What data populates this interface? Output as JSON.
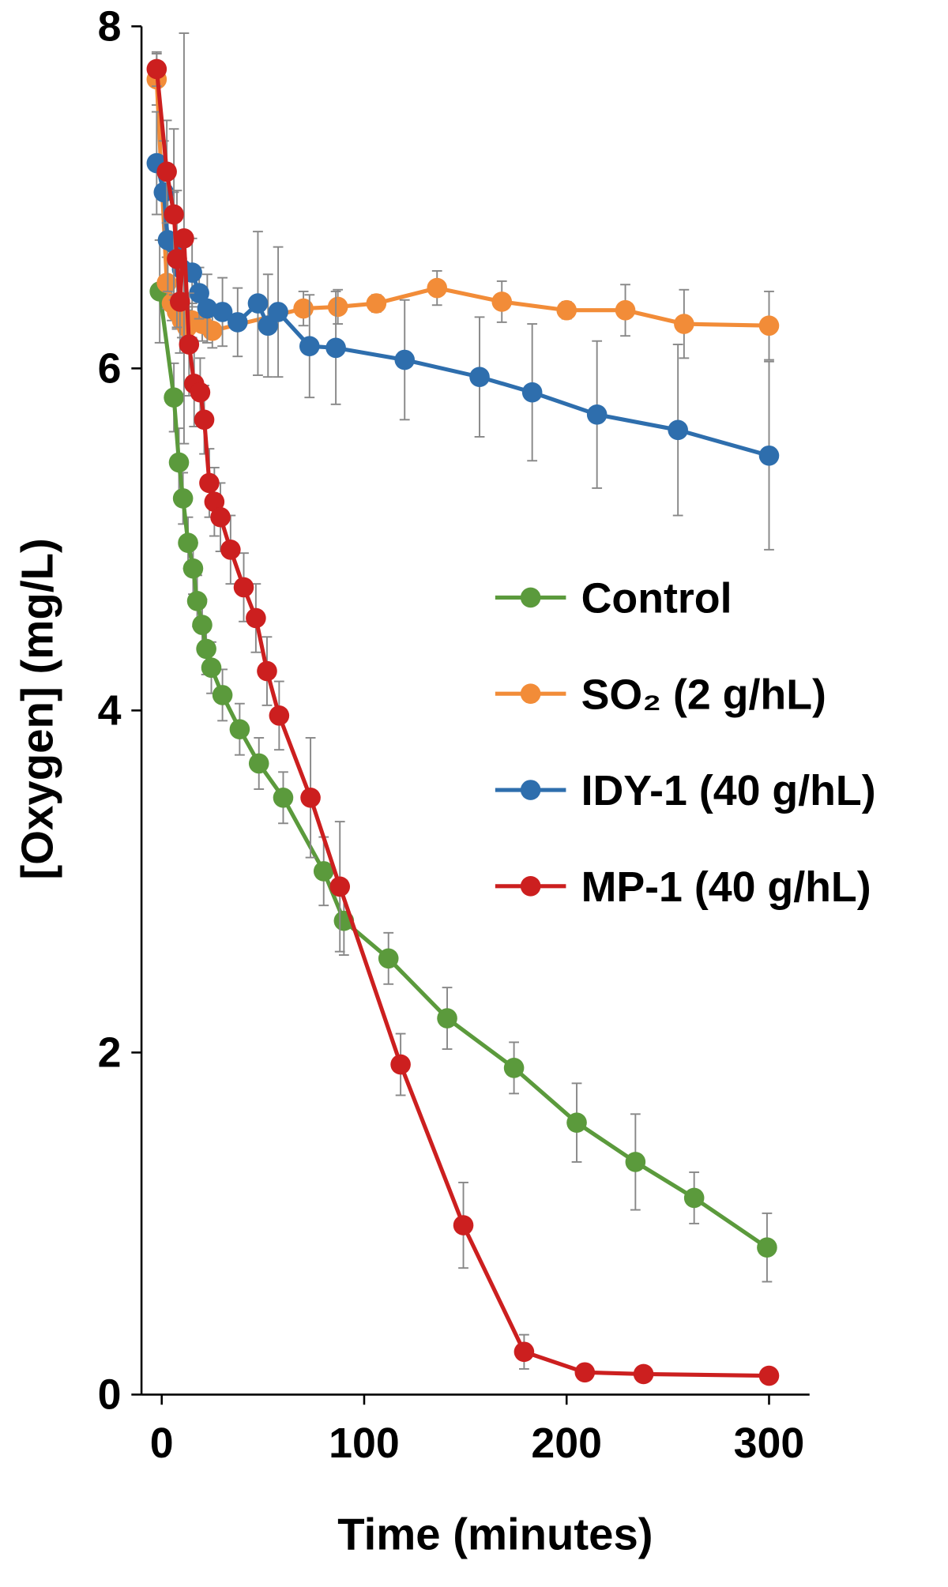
{
  "chart_data": {
    "type": "line",
    "xlabel": "Time (minutes)",
    "ylabel": "[Oxygen] (mg/L)",
    "xlim": [
      -10,
      320
    ],
    "ylim": [
      0,
      8
    ],
    "xticks": [
      0,
      100,
      200,
      300
    ],
    "yticks": [
      0,
      2,
      4,
      6,
      8
    ],
    "legend": "right",
    "series": [
      {
        "name": "Control",
        "color": "#5b9a3c",
        "x": [
          -1,
          6,
          8.5,
          10.5,
          13,
          15.5,
          17.5,
          20,
          22,
          24.5,
          30,
          38.5,
          48,
          60,
          80,
          90,
          112,
          141,
          174,
          205,
          234,
          263,
          299
        ],
        "values": [
          6.45,
          5.83,
          5.45,
          5.24,
          4.98,
          4.83,
          4.64,
          4.5,
          4.36,
          4.25,
          4.09,
          3.89,
          3.69,
          3.49,
          3.06,
          2.77,
          2.55,
          2.2,
          1.91,
          1.59,
          1.36,
          1.15,
          0.86
        ],
        "errors": [
          0.3,
          0.2,
          0.2,
          0.15,
          0.15,
          0.15,
          0.15,
          0.15,
          0.15,
          0.15,
          0.15,
          0.15,
          0.15,
          0.15,
          0.2,
          0.2,
          0.15,
          0.18,
          0.15,
          0.23,
          0.28,
          0.15,
          0.2
        ]
      },
      {
        "name": "SO₂ (2 g/hL)",
        "color": "#f28c38",
        "x": [
          -2.5,
          2.5,
          5,
          7.5,
          10,
          12.5,
          15,
          20,
          25,
          70,
          87,
          106,
          136,
          168,
          200,
          229,
          258,
          300
        ],
        "values": [
          7.69,
          6.5,
          6.38,
          6.33,
          6.28,
          6.24,
          6.28,
          6.26,
          6.22,
          6.35,
          6.36,
          6.38,
          6.47,
          6.39,
          6.34,
          6.34,
          6.26,
          6.25
        ],
        "errors": [
          0.15,
          0.15,
          0.1,
          0.1,
          0.1,
          0.1,
          0.1,
          0.1,
          0.1,
          0.1,
          0.1,
          0.05,
          0.1,
          0.12,
          0.05,
          0.15,
          0.2,
          0.2
        ]
      },
      {
        "name": "IDY-1 (40 g/hL)",
        "color": "#2e6ead",
        "x": [
          -2.5,
          1,
          3,
          6,
          10,
          15,
          18.5,
          22.5,
          30,
          37.5,
          47.5,
          52.5,
          57.5,
          73,
          86,
          120,
          157,
          183,
          215,
          255,
          300
        ],
        "values": [
          7.2,
          7.03,
          6.75,
          6.73,
          6.58,
          6.56,
          6.44,
          6.35,
          6.33,
          6.27,
          6.38,
          6.25,
          6.33,
          6.13,
          6.12,
          6.05,
          5.95,
          5.86,
          5.73,
          5.64,
          5.49
        ],
        "errors": [
          0.3,
          0.3,
          0.3,
          0.3,
          0.2,
          0.2,
          0.15,
          0.2,
          0.2,
          0.2,
          0.42,
          0.3,
          0.38,
          0.3,
          0.33,
          0.35,
          0.35,
          0.4,
          0.43,
          0.5,
          0.55
        ]
      },
      {
        "name": "MP-1 (40 g/hL)",
        "color": "#cc1f1f",
        "x": [
          -2.5,
          2.5,
          6,
          7.5,
          9,
          11,
          13.5,
          16,
          19,
          21,
          23.5,
          26,
          29,
          34,
          40.5,
          46.5,
          52,
          58,
          73.5,
          88,
          118,
          149,
          179,
          209,
          238,
          300
        ],
        "values": [
          7.75,
          7.15,
          6.9,
          6.64,
          6.39,
          6.76,
          6.14,
          5.91,
          5.86,
          5.7,
          5.33,
          5.22,
          5.13,
          4.94,
          4.72,
          4.54,
          4.23,
          3.97,
          3.49,
          2.97,
          1.93,
          0.99,
          0.25,
          0.13,
          0.12,
          0.11
        ],
        "errors": [
          0.1,
          0.3,
          0.5,
          0.4,
          0.3,
          1.2,
          0.3,
          0.25,
          0.2,
          0.2,
          0.2,
          0.2,
          0.2,
          0.2,
          0.2,
          0.2,
          0.2,
          0.2,
          0.35,
          0.38,
          0.18,
          0.25,
          0.1,
          0.03,
          0.03,
          0.03
        ]
      }
    ]
  }
}
